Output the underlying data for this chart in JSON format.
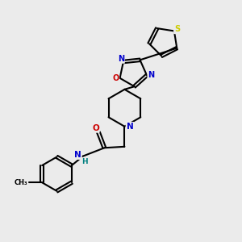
{
  "bg_color": "#ebebeb",
  "bond_color": "#000000",
  "line_width": 1.5,
  "atom_colors": {
    "N": "#0000cc",
    "O": "#cc0000",
    "S": "#cccc00",
    "H": "#008080",
    "C": "#000000"
  }
}
